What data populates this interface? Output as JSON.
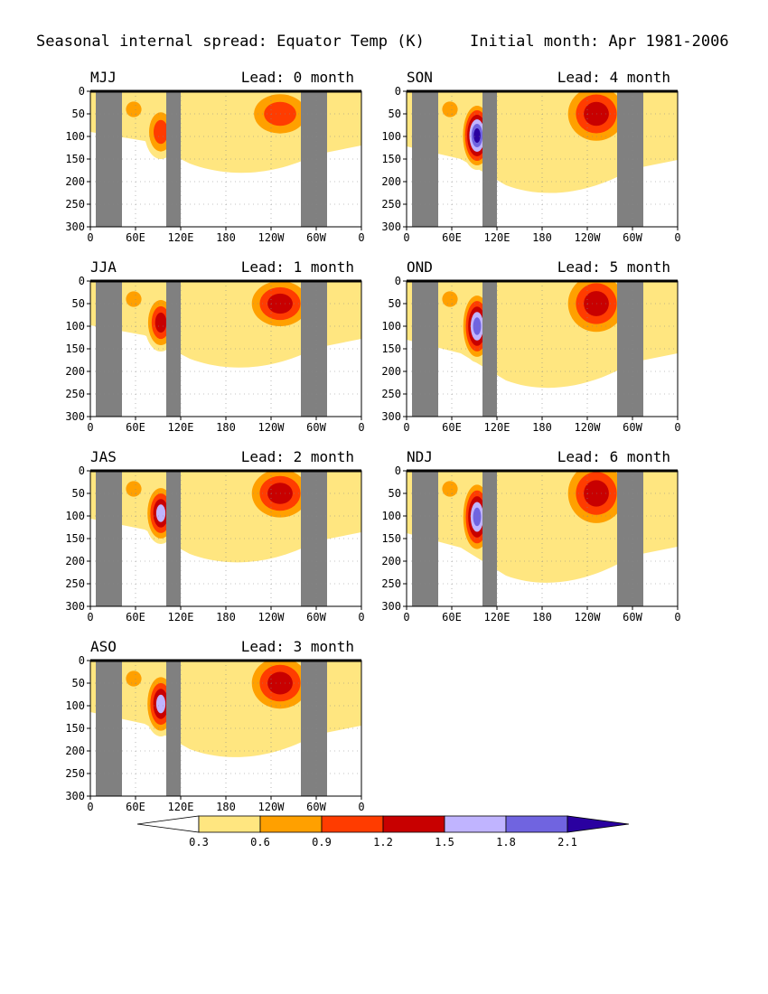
{
  "figure": {
    "title": "Seasonal internal spread: Equator Temp (K)",
    "subtitle": "Initial month: Apr 1981-2006"
  },
  "chart_data": {
    "type": "heatmap",
    "quantity": "Equator Temp spread",
    "units": "K",
    "x_ticks": [
      "0",
      "60E",
      "120E",
      "180",
      "120W",
      "60W",
      "0"
    ],
    "y_ticks": [
      "0",
      "50",
      "100",
      "150",
      "200",
      "250",
      "300"
    ],
    "xlim": [
      0,
      360
    ],
    "ylim": [
      300,
      0
    ],
    "grid": "dotted",
    "land_mask_color": "#808080",
    "panels": [
      {
        "season": "MJJ",
        "lead": "Lead: 0 month",
        "max_level": 0.9
      },
      {
        "season": "JJA",
        "lead": "Lead: 1 month",
        "max_level": 1.2
      },
      {
        "season": "JAS",
        "lead": "Lead: 2 month",
        "max_level": 1.5
      },
      {
        "season": "ASO",
        "lead": "Lead: 3 month",
        "max_level": 1.5
      },
      {
        "season": "SON",
        "lead": "Lead: 4 month",
        "max_level": 2.1
      },
      {
        "season": "OND",
        "lead": "Lead: 5 month",
        "max_level": 1.8
      },
      {
        "season": "NDJ",
        "lead": "Lead: 6 month",
        "max_level": 1.8
      }
    ],
    "colorbar": {
      "levels": [
        "0.3",
        "0.6",
        "0.9",
        "1.2",
        "1.5",
        "1.8",
        "2.1"
      ],
      "colors": [
        "#ffffff",
        "#ffe680",
        "#ffa000",
        "#ff3c00",
        "#c80000",
        "#c0b4ff",
        "#7064e0",
        "#2a00a0"
      ]
    }
  }
}
